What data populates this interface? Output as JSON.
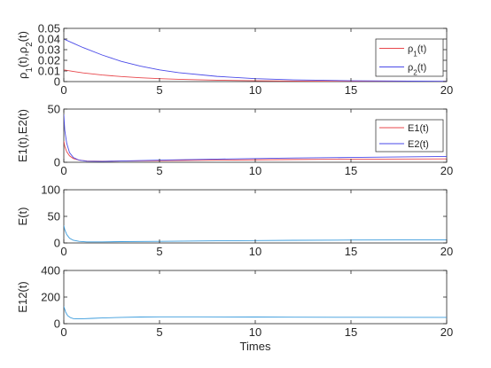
{
  "chart_data": [
    {
      "type": "line",
      "ylabel": "ρ1(t),ρ2(t)",
      "xlim": [
        0,
        20
      ],
      "ylim": [
        0,
        0.05
      ],
      "xticks": [
        0,
        5,
        10,
        15,
        20
      ],
      "xtick_labels": [
        "0",
        "5",
        "10",
        "15",
        "20"
      ],
      "yticks": [
        0,
        0.01,
        0.02,
        0.03,
        0.04,
        0.05
      ],
      "ytick_labels": [
        "0",
        "0.01",
        "0.02",
        "0.03",
        "0.04",
        "0.05"
      ],
      "grid": false,
      "legend": "right",
      "series": [
        {
          "name": "ρ1(t)",
          "color": "#e8474c",
          "x": [
            0,
            0.5,
            1,
            2,
            3,
            4,
            5,
            6,
            8,
            10,
            12,
            15,
            20
          ],
          "y": [
            0.011,
            0.0095,
            0.0082,
            0.0062,
            0.0047,
            0.0036,
            0.0028,
            0.0021,
            0.0013,
            0.0008,
            0.0005,
            0.0002,
            0.0001
          ]
        },
        {
          "name": "ρ2(t)",
          "color": "#4a4ae8",
          "x": [
            0,
            0.5,
            1,
            2,
            3,
            4,
            5,
            6,
            8,
            10,
            12,
            15,
            20
          ],
          "y": [
            0.04,
            0.036,
            0.032,
            0.025,
            0.019,
            0.0145,
            0.011,
            0.0084,
            0.0049,
            0.0028,
            0.0016,
            0.0008,
            0.0002
          ]
        }
      ]
    },
    {
      "type": "line",
      "ylabel": "E1(t),E2(t)",
      "xlim": [
        0,
        20
      ],
      "ylim": [
        0,
        50
      ],
      "xticks": [
        0,
        5,
        10,
        15,
        20
      ],
      "xtick_labels": [
        "0",
        "5",
        "10",
        "15",
        "20"
      ],
      "yticks": [
        0,
        50
      ],
      "ytick_labels": [
        "0",
        "50"
      ],
      "grid": false,
      "legend": "right",
      "series": [
        {
          "name": "E1(t)",
          "color": "#e8474c",
          "x": [
            0,
            0.05,
            0.15,
            0.3,
            0.5,
            0.8,
            1.2,
            2,
            3,
            5,
            8,
            10,
            12,
            15,
            20
          ],
          "y": [
            20,
            15,
            10,
            6,
            3.5,
            2,
            1.2,
            1,
            1.2,
            1.5,
            2,
            2.3,
            2.6,
            2.9,
            3.2
          ]
        },
        {
          "name": "E2(t)",
          "color": "#4a4ae8",
          "x": [
            0,
            0.05,
            0.15,
            0.3,
            0.5,
            0.8,
            1.2,
            2,
            3,
            5,
            8,
            10,
            12,
            15,
            20
          ],
          "y": [
            45,
            30,
            18,
            9,
            4.5,
            2,
            1,
            0.8,
            1.2,
            2,
            3,
            3.5,
            4,
            4.5,
            5.5
          ]
        }
      ]
    },
    {
      "type": "line",
      "ylabel": "E(t)",
      "xlim": [
        0,
        20
      ],
      "ylim": [
        0,
        100
      ],
      "xticks": [
        0,
        5,
        10,
        15,
        20
      ],
      "xtick_labels": [
        "0",
        "5",
        "10",
        "15",
        "20"
      ],
      "yticks": [
        0,
        50,
        100
      ],
      "ytick_labels": [
        "0",
        "50",
        "100"
      ],
      "grid": false,
      "series": [
        {
          "color": "#3a9bdc",
          "x": [
            0,
            0.05,
            0.15,
            0.3,
            0.5,
            0.8,
            1.2,
            2,
            3,
            5,
            8,
            10,
            12,
            15,
            20
          ],
          "y": [
            33,
            25,
            16,
            9,
            5,
            3,
            2,
            2,
            2.5,
            3,
            4,
            4.5,
            5,
            5.5,
            6
          ]
        }
      ]
    },
    {
      "type": "line",
      "ylabel": "E12(t)",
      "xlabel": "Times",
      "xlim": [
        0,
        20
      ],
      "ylim": [
        0,
        400
      ],
      "xticks": [
        0,
        5,
        10,
        15,
        20
      ],
      "xtick_labels": [
        "0",
        "5",
        "10",
        "15",
        "20"
      ],
      "yticks": [
        0,
        200,
        400
      ],
      "ytick_labels": [
        "0",
        "200",
        "400"
      ],
      "grid": false,
      "series": [
        {
          "color": "#3a9bdc",
          "x": [
            0,
            0.1,
            0.2,
            0.35,
            0.5,
            0.7,
            1,
            1.5,
            2,
            3,
            4,
            5,
            7,
            10,
            12,
            15,
            20
          ],
          "y": [
            130,
            85,
            60,
            45,
            38,
            36,
            37,
            40,
            43,
            47,
            50,
            51,
            51,
            50,
            49,
            48,
            47
          ]
        }
      ]
    }
  ]
}
